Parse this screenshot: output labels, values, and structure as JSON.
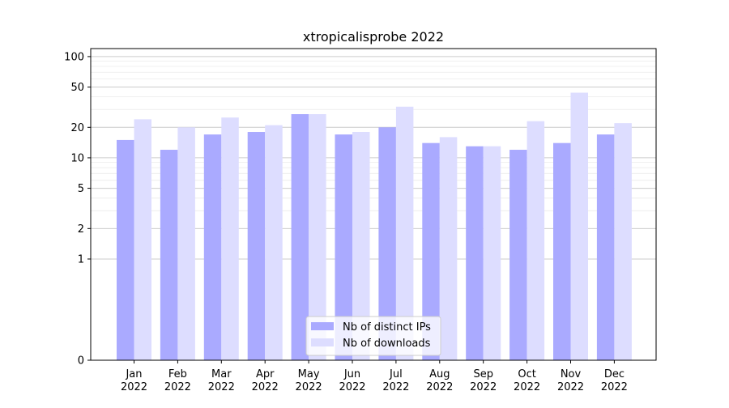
{
  "chart_data": {
    "type": "bar",
    "title": "xtropicalisprobe 2022",
    "xlabel": "",
    "ylabel": "",
    "y_scale": "symlog",
    "ylim": [
      0,
      120
    ],
    "y_ticks": [
      0,
      1,
      2,
      5,
      10,
      20,
      50,
      100
    ],
    "y_tick_labels": [
      "0",
      "1",
      "2",
      "5",
      "10",
      "20",
      "50",
      "100"
    ],
    "grid": "horizontal",
    "legend_position": "bottom-center",
    "categories": [
      "Jan\n2022",
      "Feb\n2022",
      "Mar\n2022",
      "Apr\n2022",
      "May\n2022",
      "Jun\n2022",
      "Jul\n2022",
      "Aug\n2022",
      "Sep\n2022",
      "Oct\n2022",
      "Nov\n2022",
      "Dec\n2022"
    ],
    "series": [
      {
        "name": "Nb of distinct IPs",
        "color": "#aaaaff",
        "values": [
          15,
          12,
          17,
          18,
          27,
          17,
          20,
          14,
          13,
          12,
          14,
          17
        ]
      },
      {
        "name": "Nb of downloads",
        "color": "#ddddff",
        "values": [
          24,
          20,
          25,
          21,
          27,
          18,
          32,
          16,
          13,
          23,
          44,
          22
        ]
      }
    ]
  }
}
